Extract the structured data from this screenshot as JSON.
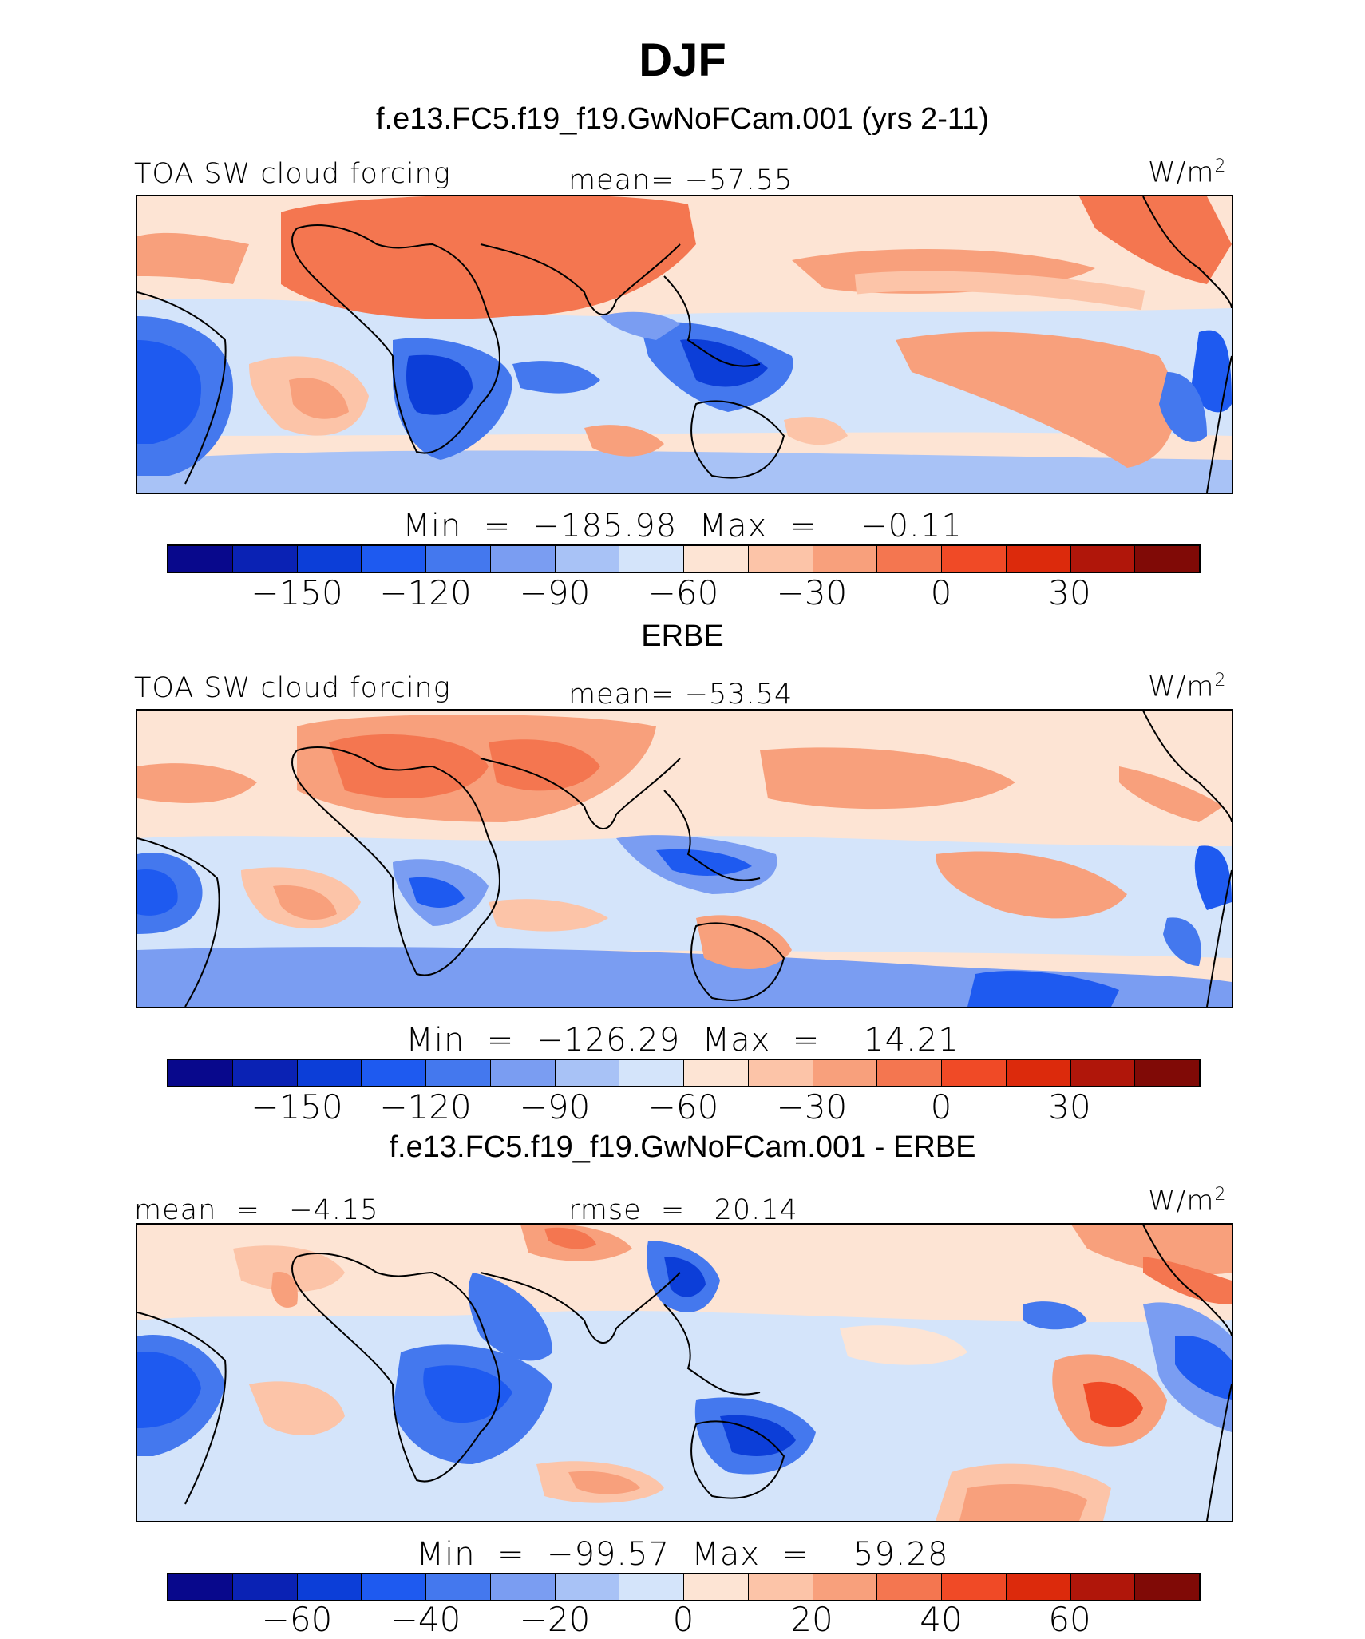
{
  "title": "DJF",
  "colorbar_colors": [
    "#08088c",
    "#0a22b4",
    "#0c3ed8",
    "#1e5af0",
    "#4478ee",
    "#7a9df2",
    "#a8c2f6",
    "#d4e4fa",
    "#fde4d4",
    "#fcc4a8",
    "#f8a07c",
    "#f47650",
    "#f04a26",
    "#dc2a0c",
    "#b0160a",
    "#800a06"
  ],
  "panels": [
    {
      "id": "model",
      "heading": "f.e13.FC5.f19_f19.GwNoFCam.001 (yrs 2-11)",
      "left_label": "TOA SW cloud forcing",
      "center_label": "mean= −57.55",
      "units": "W/m",
      "units_sup": "2",
      "minmax": "Min  =  −185.98  Max  =    −0.11",
      "ticks": [
        "−150",
        "−120",
        "−90",
        "−60",
        "−30",
        "0",
        "30"
      ]
    },
    {
      "id": "obs",
      "heading": "ERBE",
      "left_label": "TOA SW cloud forcing",
      "center_label": "mean= −53.54",
      "units": "W/m",
      "units_sup": "2",
      "minmax": "Min  =  −126.29  Max  =    14.21",
      "ticks": [
        "−150",
        "−120",
        "−90",
        "−60",
        "−30",
        "0",
        "30"
      ]
    },
    {
      "id": "diff",
      "heading": "f.e13.FC5.f19_f19.GwNoFCam.001 - ERBE",
      "left_label": "mean  =   −4.15",
      "center_label": "rmse  =   20.14",
      "units": "W/m",
      "units_sup": "2",
      "minmax": "Min  =  −99.57  Max  =    59.28",
      "ticks": [
        "−60",
        "−40",
        "−20",
        "0",
        "20",
        "40",
        "60"
      ]
    }
  ]
}
